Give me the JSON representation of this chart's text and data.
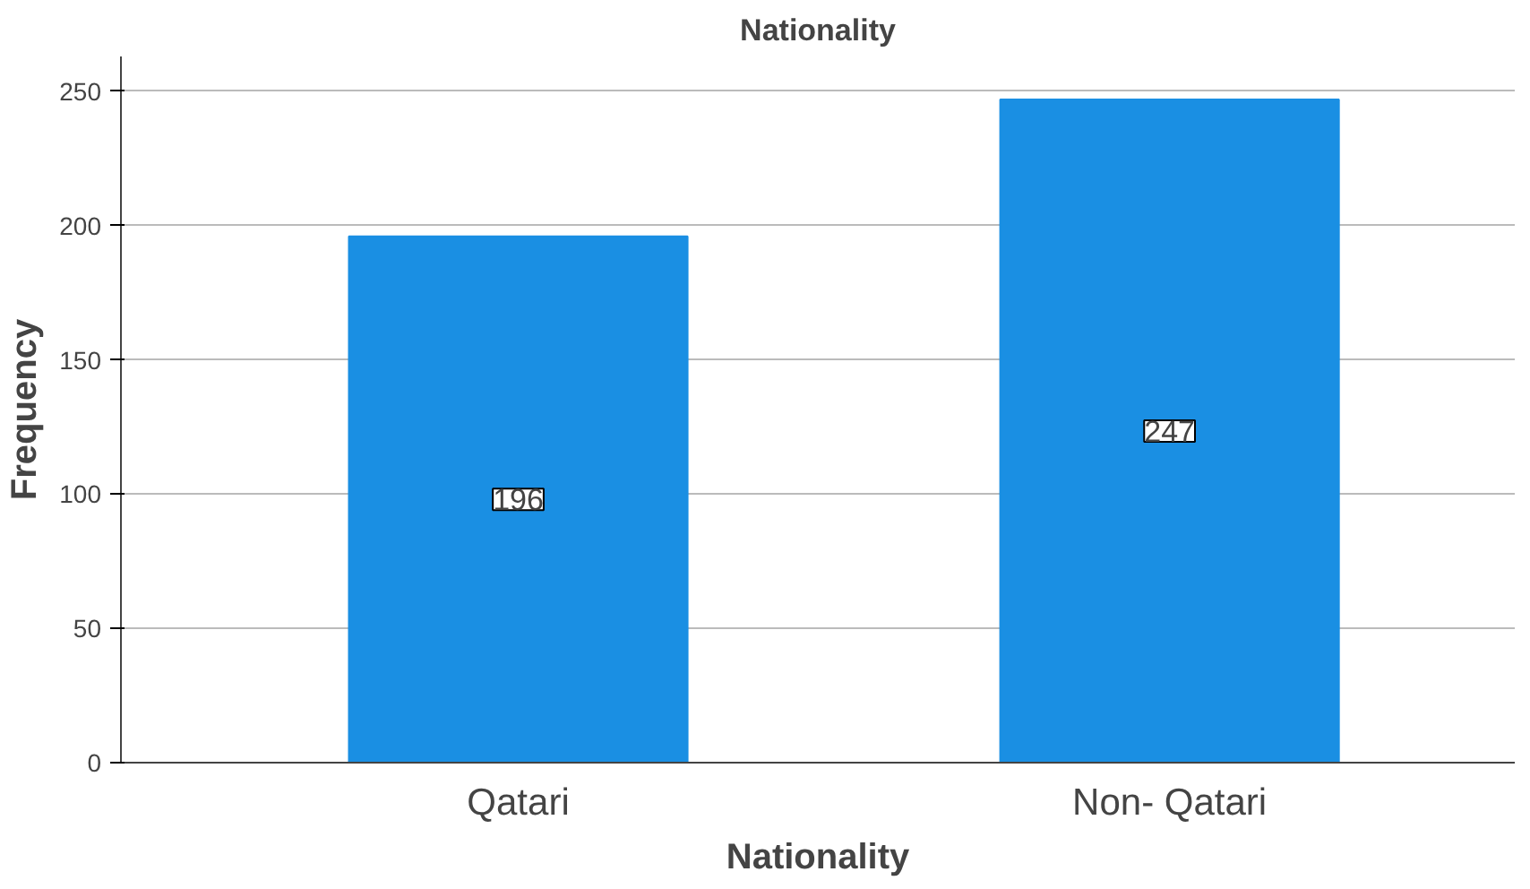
{
  "chart_data": {
    "type": "bar",
    "title": "Nationality",
    "xlabel": "Nationality",
    "ylabel": "Frequency",
    "categories": [
      "Qatari",
      "Non- Qatari"
    ],
    "values": [
      196,
      247
    ],
    "color": "#1a8fe3",
    "ylim": [
      0,
      263
    ],
    "yticks": [
      0,
      50,
      100,
      150,
      200,
      250
    ],
    "grid": "y",
    "data_labels": true
  }
}
